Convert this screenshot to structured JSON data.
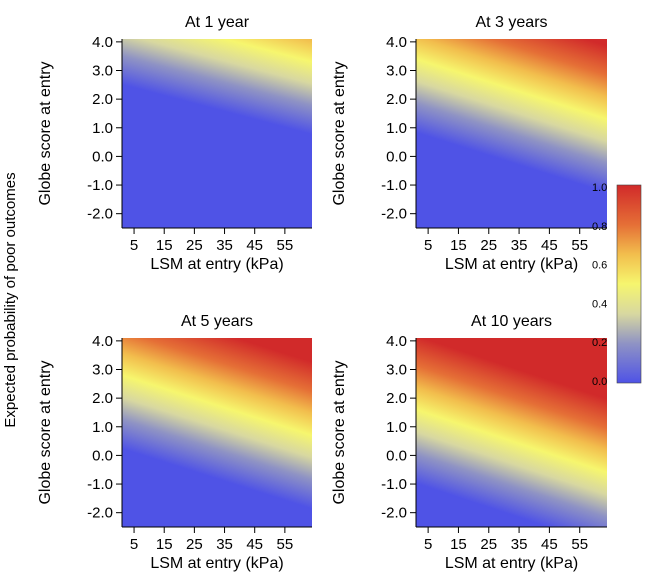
{
  "figure": {
    "y_label": "Expected probability of poor outcomes"
  },
  "chart_data": [
    {
      "type": "heatmap",
      "title": "At 1 year",
      "xlabel": "LSM at entry (kPa)",
      "ylabel": "Globe score at entry",
      "x_ticks": [
        "5",
        "15",
        "25",
        "35",
        "45",
        "55"
      ],
      "y_ticks": [
        "4.0",
        "3.0",
        "2.0",
        "1.0",
        "0.0",
        "-1.0",
        "-2.0"
      ],
      "xlim": [
        1,
        64
      ],
      "ylim": [
        -2.5,
        4.1
      ],
      "surface": {
        "prob_at_lsm1_globe_minus2.5": 0.0,
        "prob_at_lsm64_globe4.1": 0.6,
        "contour_p0.5": [
          [
            35,
            4.1
          ],
          [
            64,
            3.3
          ]
        ]
      }
    },
    {
      "type": "heatmap",
      "title": "At 3 years",
      "xlabel": "LSM at entry (kPa)",
      "ylabel": "Globe score at entry",
      "x_ticks": [
        "5",
        "15",
        "25",
        "35",
        "45",
        "55"
      ],
      "y_ticks": [
        "4.0",
        "3.0",
        "2.0",
        "1.0",
        "0.0",
        "-1.0",
        "-2.0"
      ],
      "xlim": [
        1,
        64
      ],
      "ylim": [
        -2.5,
        4.1
      ],
      "surface": {
        "prob_at_lsm1_globe_minus2.5": 0.0,
        "prob_at_lsm64_globe4.1": 0.95,
        "contour_p0.5": [
          [
            1,
            3.4
          ],
          [
            64,
            1.3
          ]
        ]
      }
    },
    {
      "type": "heatmap",
      "title": "At 5 years",
      "xlabel": "LSM at entry (kPa)",
      "ylabel": "Globe score at entry",
      "x_ticks": [
        "5",
        "15",
        "25",
        "35",
        "45",
        "55"
      ],
      "y_ticks": [
        "4.0",
        "3.0",
        "2.0",
        "1.0",
        "0.0",
        "-1.0",
        "-2.0"
      ],
      "xlim": [
        1,
        64
      ],
      "ylim": [
        -2.5,
        4.1
      ],
      "surface": {
        "prob_at_lsm1_globe_minus2.5": 0.0,
        "prob_at_lsm64_globe4.1": 1.0,
        "contour_p0.5": [
          [
            1,
            2.8
          ],
          [
            64,
            0.7
          ]
        ]
      }
    },
    {
      "type": "heatmap",
      "title": "At 10 years",
      "xlabel": "LSM at entry (kPa)",
      "ylabel": "Globe score at entry",
      "x_ticks": [
        "5",
        "15",
        "25",
        "35",
        "45",
        "55"
      ],
      "y_ticks": [
        "4.0",
        "3.0",
        "2.0",
        "1.0",
        "0.0",
        "-1.0",
        "-2.0"
      ],
      "xlim": [
        1,
        64
      ],
      "ylim": [
        -2.5,
        4.1
      ],
      "surface": {
        "prob_at_lsm1_globe_minus2.5": 0.02,
        "prob_at_lsm64_globe4.1": 1.0,
        "contour_p0.5": [
          [
            1,
            1.6
          ],
          [
            64,
            -0.6
          ]
        ]
      }
    }
  ],
  "colorbar": {
    "ticks": [
      "1.0",
      "0.8",
      "0.6",
      "0.4",
      "0.2",
      "0.0"
    ],
    "stops": [
      {
        "value": 0.0,
        "color": "#4f53e6"
      },
      {
        "value": 0.2,
        "color": "#8f93c4"
      },
      {
        "value": 0.35,
        "color": "#d8d8a0"
      },
      {
        "value": 0.5,
        "color": "#f6f66e"
      },
      {
        "value": 0.65,
        "color": "#f2be4d"
      },
      {
        "value": 0.8,
        "color": "#e56f36"
      },
      {
        "value": 1.0,
        "color": "#d12a2a"
      }
    ]
  }
}
